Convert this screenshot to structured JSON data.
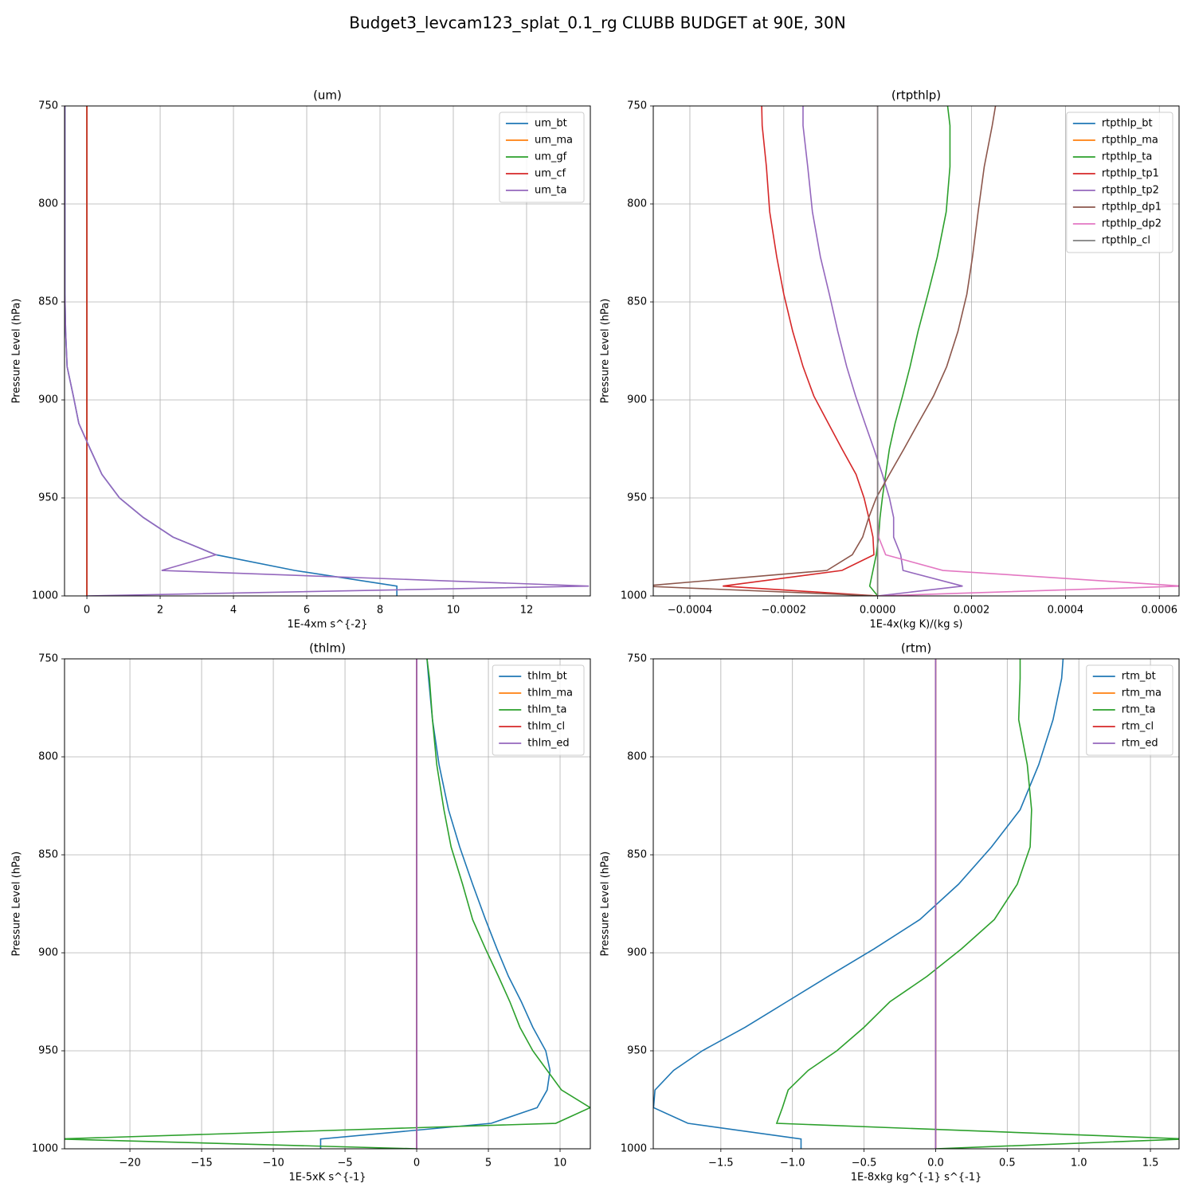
{
  "title": "Budget3_levcam123_splat_0.1_rg CLUBB BUDGET at 90E, 30N",
  "chart_data": [
    {
      "type": "line",
      "title": "(um)",
      "xlabel": "1E-4xm s^{-2}",
      "ylabel": "Pressure Level (hPa)",
      "xlim": [
        -0.61,
        13.74
      ],
      "xticks": [
        0,
        2,
        4,
        6,
        8,
        10,
        12
      ],
      "ylim": [
        1000,
        750
      ],
      "yticks": [
        750,
        800,
        850,
        900,
        950,
        1000
      ],
      "grid": true,
      "legend": "upper-right",
      "y": [
        750,
        760,
        781,
        804,
        827,
        846,
        865,
        883,
        898,
        912,
        925,
        938,
        950,
        960,
        970,
        979,
        987,
        995,
        1000
      ],
      "series": [
        {
          "name": "um_bt",
          "color": "#1f77b4",
          "values": [
            -0.6,
            -0.6,
            -0.6,
            -0.6,
            -0.6,
            -0.6,
            -0.58,
            -0.54,
            -0.37,
            -0.22,
            0.09,
            0.41,
            0.89,
            1.54,
            2.35,
            3.52,
            5.67,
            8.46,
            8.46
          ]
        },
        {
          "name": "um_ma",
          "color": "#ff7f0e",
          "values": [
            0,
            0,
            0,
            0,
            0,
            0,
            0,
            0,
            0,
            0,
            0,
            0,
            0,
            0,
            0,
            0,
            0,
            0,
            0
          ]
        },
        {
          "name": "um_gf",
          "color": "#2ca02c",
          "values": [
            0,
            0,
            0,
            0,
            0,
            0,
            0,
            0,
            0,
            0,
            0,
            0,
            0,
            0,
            0,
            0,
            0,
            0,
            0
          ]
        },
        {
          "name": "um_cf",
          "color": "#d62728",
          "values": [
            0,
            0,
            0,
            0,
            0,
            0,
            0,
            0,
            0,
            0,
            0,
            0,
            0,
            0,
            0,
            0,
            0,
            0,
            0
          ]
        },
        {
          "name": "um_ta",
          "color": "#9467bd",
          "values": [
            -0.6,
            -0.6,
            -0.6,
            -0.6,
            -0.6,
            -0.6,
            -0.58,
            -0.54,
            -0.37,
            -0.22,
            0.09,
            0.41,
            0.89,
            1.54,
            2.35,
            3.52,
            2.04,
            13.7,
            0
          ]
        }
      ]
    },
    {
      "type": "line",
      "title": "(rtpthlp)",
      "xlabel": "1E-4x(kg K)/(kg s)",
      "ylabel": "Pressure Level (hPa)",
      "xlim": [
        -0.000478,
        0.000642
      ],
      "xticks": [
        {
          "value": -0.0004,
          "label": "−0.0004"
        },
        {
          "value": -0.0002,
          "label": "−0.0002"
        },
        {
          "value": 0,
          "label": "0.0000"
        },
        {
          "value": 0.0002,
          "label": "0.0002"
        },
        {
          "value": 0.0004,
          "label": "0.0004"
        },
        {
          "value": 0.0006,
          "label": "0.0006"
        }
      ],
      "ylim": [
        1000,
        750
      ],
      "yticks": [
        750,
        800,
        850,
        900,
        950,
        1000
      ],
      "grid": true,
      "legend": "upper-right",
      "y": [
        750,
        760,
        781,
        804,
        827,
        846,
        865,
        883,
        898,
        912,
        925,
        938,
        950,
        960,
        970,
        979,
        987,
        995,
        1000
      ],
      "series": [
        {
          "name": "rtpthlp_bt",
          "color": "#1f77b4",
          "values": [
            0,
            0,
            0,
            0,
            0,
            0,
            0,
            0,
            0,
            0,
            0,
            0,
            0,
            0,
            0,
            0,
            0,
            0,
            0
          ]
        },
        {
          "name": "rtpthlp_ma",
          "color": "#ff7f0e",
          "values": [
            0,
            0,
            0,
            0,
            0,
            0,
            0,
            0,
            0,
            0,
            0,
            0,
            0,
            0,
            0,
            0,
            0,
            0,
            0
          ]
        },
        {
          "name": "rtpthlp_ta",
          "color": "#2ca02c",
          "values": [
            0.000149,
            0.000154,
            0.000154,
            0.000146,
            0.000127,
            0.000107,
            8.6e-05,
            6.9e-05,
            5.3e-05,
            3.7e-05,
            2.5e-05,
            1.7e-05,
            1e-05,
            5e-06,
            2e-06,
            -3e-06,
            -1e-05,
            -1.7e-05,
            0
          ]
        },
        {
          "name": "rtpthlp_tp1",
          "color": "#d62728",
          "values": [
            -0.000247,
            -0.000246,
            -0.000237,
            -0.00023,
            -0.000215,
            -0.0002,
            -0.000181,
            -0.000159,
            -0.000136,
            -0.000105,
            -7.6e-05,
            -4.6e-05,
            -2.9e-05,
            -1.9e-05,
            -1e-05,
            -8e-06,
            -7.6e-05,
            -0.00033,
            0
          ]
        },
        {
          "name": "rtpthlp_tp2",
          "color": "#9467bd",
          "values": [
            -0.000159,
            -0.000159,
            -0.000149,
            -0.000139,
            -0.000122,
            -0.000103,
            -8.5e-05,
            -6.6e-05,
            -4.7e-05,
            -2.7e-05,
            -8e-06,
            1e-05,
            2.5e-05,
            3.4e-05,
            3.4e-05,
            4.9e-05,
            5.4e-05,
            0.000181,
            0
          ]
        },
        {
          "name": "rtpthlp_dp1",
          "color": "#8c564b",
          "values": [
            0.000251,
            0.000244,
            0.000227,
            0.000214,
            0.000202,
            0.00019,
            0.000171,
            0.000147,
            0.000119,
            8.6e-05,
            5.6e-05,
            2.5e-05,
            -3e-06,
            -1.9e-05,
            -3.2e-05,
            -5.4e-05,
            -0.000108,
            -0.0005,
            0
          ]
        },
        {
          "name": "rtpthlp_dp2",
          "color": "#e377c2",
          "values": [
            0,
            0,
            0,
            0,
            0,
            0,
            0,
            0,
            0,
            0,
            0,
            0,
            0,
            0,
            2e-06,
            1.7e-05,
            0.000139,
            0.00065,
            0
          ]
        },
        {
          "name": "rtpthlp_cl",
          "color": "#7f7f7f",
          "values": [
            0,
            0,
            0,
            0,
            0,
            0,
            0,
            0,
            0,
            0,
            0,
            0,
            0,
            0,
            0,
            0,
            0,
            0,
            0
          ]
        }
      ]
    },
    {
      "type": "line",
      "title": "(thlm)",
      "xlabel": "1E-5xK s^{-1}",
      "ylabel": "Pressure Level (hPa)",
      "xlim": [
        -24.56,
        12.11
      ],
      "xticks": [
        {
          "value": -20,
          "label": "−20"
        },
        {
          "value": -15,
          "label": "−15"
        },
        {
          "value": -10,
          "label": "−10"
        },
        {
          "value": -5,
          "label": "−5"
        },
        0,
        5,
        10
      ],
      "ylim": [
        1000,
        750
      ],
      "yticks": [
        750,
        800,
        850,
        900,
        950,
        1000
      ],
      "grid": true,
      "legend": "upper-right",
      "y": [
        750,
        760,
        781,
        804,
        827,
        846,
        865,
        883,
        898,
        912,
        925,
        938,
        950,
        960,
        970,
        979,
        987,
        995,
        1000
      ],
      "series": [
        {
          "name": "thlm_bt",
          "color": "#1f77b4",
          "values": [
            0.72,
            0.83,
            1.1,
            1.56,
            2.22,
            3.0,
            3.9,
            4.8,
            5.6,
            6.4,
            7.3,
            8.1,
            9.0,
            9.3,
            9.1,
            8.4,
            5.2,
            -6.7,
            -6.7
          ]
        },
        {
          "name": "thlm_ma",
          "color": "#ff7f0e",
          "values": [
            0,
            0,
            0,
            0,
            0,
            0,
            0,
            0,
            0,
            0,
            0,
            0,
            0,
            0,
            0,
            0,
            0,
            0,
            0
          ]
        },
        {
          "name": "thlm_ta",
          "color": "#2ca02c",
          "values": [
            0.72,
            0.89,
            1.1,
            1.4,
            1.9,
            2.4,
            3.2,
            3.9,
            4.8,
            5.7,
            6.5,
            7.2,
            8.1,
            9.1,
            10.1,
            12.1,
            9.7,
            -25,
            0
          ]
        },
        {
          "name": "thlm_cl",
          "color": "#d62728",
          "values": [
            0,
            0,
            0,
            0,
            0,
            0,
            0,
            0,
            0,
            0,
            0,
            0,
            0,
            0,
            0,
            0,
            0,
            0,
            0
          ]
        },
        {
          "name": "thlm_ed",
          "color": "#9467bd",
          "values": [
            0,
            0,
            0,
            0,
            0,
            0,
            0,
            0,
            0,
            0,
            0,
            0,
            0,
            0,
            0,
            0,
            0,
            0,
            0
          ]
        }
      ]
    },
    {
      "type": "line",
      "title": "(rtm)",
      "xlabel": "1E-8xkg kg^{-1} s^{-1}",
      "ylabel": "Pressure Level (hPa)",
      "xlim": [
        -1.972,
        1.7
      ],
      "xticks": [
        {
          "value": -1.5,
          "label": "−1.5"
        },
        {
          "value": -1,
          "label": "−1.0"
        },
        {
          "value": -0.5,
          "label": "−0.5"
        },
        {
          "value": 0,
          "label": "0.0"
        },
        0.5,
        {
          "value": 1,
          "label": "1.0"
        },
        1.5
      ],
      "ylim": [
        1000,
        750
      ],
      "yticks": [
        750,
        800,
        850,
        900,
        950,
        1000
      ],
      "grid": true,
      "legend": "upper-right",
      "y": [
        750,
        760,
        781,
        804,
        827,
        846,
        865,
        883,
        898,
        912,
        925,
        938,
        950,
        960,
        970,
        979,
        987,
        995,
        1000
      ],
      "series": [
        {
          "name": "rtm_bt",
          "color": "#1f77b4",
          "values": [
            0.89,
            0.88,
            0.82,
            0.72,
            0.59,
            0.39,
            0.16,
            -0.11,
            -0.43,
            -0.75,
            -1.04,
            -1.33,
            -1.63,
            -1.83,
            -1.96,
            -1.97,
            -1.73,
            -0.94,
            -0.94
          ]
        },
        {
          "name": "rtm_ma",
          "color": "#ff7f0e",
          "values": [
            0,
            0,
            0,
            0,
            0,
            0,
            0,
            0,
            0,
            0,
            0,
            0,
            0,
            0,
            0,
            0,
            0,
            0,
            0
          ]
        },
        {
          "name": "rtm_ta",
          "color": "#2ca02c",
          "values": [
            0.59,
            0.59,
            0.58,
            0.64,
            0.67,
            0.66,
            0.57,
            0.41,
            0.18,
            -0.06,
            -0.32,
            -0.5,
            -0.69,
            -0.89,
            -1.03,
            -1.07,
            -1.11,
            1.75,
            0
          ]
        },
        {
          "name": "rtm_cl",
          "color": "#d62728",
          "values": [
            0,
            0,
            0,
            0,
            0,
            0,
            0,
            0,
            0,
            0,
            0,
            0,
            0,
            0,
            0,
            0,
            0,
            0,
            0
          ]
        },
        {
          "name": "rtm_ed",
          "color": "#9467bd",
          "values": [
            0,
            0,
            0,
            0,
            0,
            0,
            0,
            0,
            0,
            0,
            0,
            0,
            0,
            0,
            0,
            0,
            0,
            0,
            0
          ]
        }
      ]
    }
  ]
}
